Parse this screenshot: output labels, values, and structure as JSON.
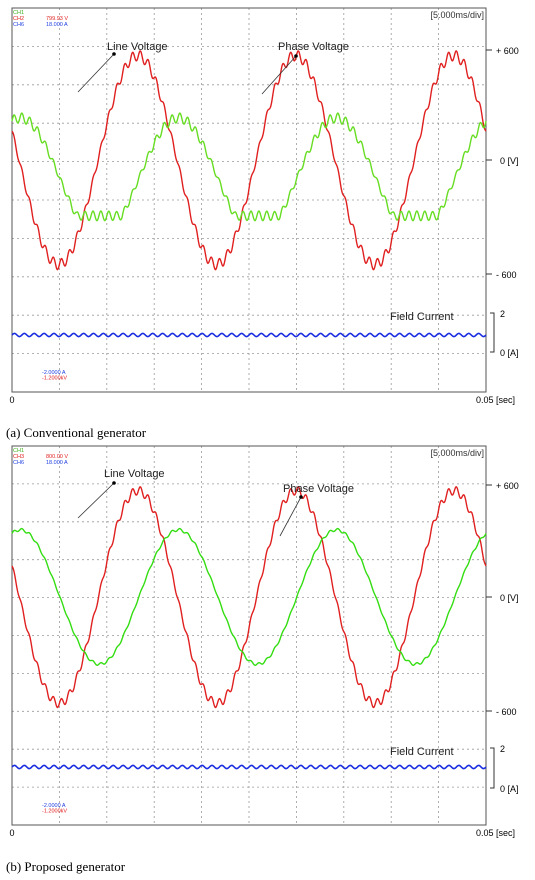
{
  "panels": [
    {
      "caption": "(a)  Conventional  generator",
      "header_label": "[5.000ms/div]",
      "channels": [
        {
          "name": "CH1",
          "value": "",
          "color": "#3fae1f"
        },
        {
          "name": "CH2",
          "value": "799.93 V",
          "color": "#e02020"
        },
        {
          "name": "CH6",
          "value": "18.000 A",
          "color": "#2040e0"
        }
      ],
      "offsets": [
        {
          "text": "-2.0000 A",
          "color": "#2040e0"
        },
        {
          "text": "-1.2000kV",
          "color": "#e02020"
        },
        {
          "text": "",
          "color": "#3fae1f"
        }
      ],
      "annotations": {
        "line_voltage": "Line Voltage",
        "phase_voltage": "Phase Voltage",
        "field_current": "Field Current"
      },
      "y_labels": {
        "top": "+ 600",
        "zero": "0 [V]",
        "bottom": "- 600",
        "current_top": "2",
        "current_zero": "0 [A]"
      },
      "x_labels": {
        "start": "0",
        "end": "0.05 [sec]"
      },
      "chart_data": {
        "type": "line",
        "xlabel": "[sec]",
        "xlim": [
          0,
          0.05
        ],
        "ylim": [
          -600,
          600
        ],
        "series": [
          {
            "name": "Line Voltage",
            "color": "#e02020",
            "frequency_hz": 60,
            "amplitude": 570,
            "phase_deg": 164,
            "ripple": 0.05
          },
          {
            "name": "Phase Voltage",
            "color": "#66dd22",
            "frequency_hz": 60,
            "amplitude": 330,
            "phase_deg": 71,
            "offset": -100,
            "ripple": 0.08,
            "flattened": true
          },
          {
            "name": "Field Current",
            "color": "#1a2ee0",
            "level_A": 1.0,
            "ripple_A": 0.08
          }
        ]
      }
    },
    {
      "caption": "(b)  Proposed  generator",
      "header_label": "[5.000ms/div]",
      "channels": [
        {
          "name": "CH1",
          "value": "",
          "color": "#3fae1f"
        },
        {
          "name": "CH3",
          "value": "800.00 V",
          "color": "#e02020"
        },
        {
          "name": "CH6",
          "value": "18.000 A",
          "color": "#2040e0"
        }
      ],
      "offsets": [
        {
          "text": "-2.0000 A",
          "color": "#2040e0"
        },
        {
          "text": "-1.2000kV",
          "color": "#e02020"
        },
        {
          "text": "",
          "color": "#3fae1f"
        }
      ],
      "annotations": {
        "line_voltage": "Line Voltage",
        "phase_voltage": "Phase Voltage",
        "field_current": "Field Current"
      },
      "y_labels": {
        "top": "+ 600",
        "zero": "0 [V]",
        "bottom": "- 600",
        "current_top": "2",
        "current_zero": "0 [A]"
      },
      "x_labels": {
        "start": "0",
        "end": "0.05 [sec]"
      },
      "chart_data": {
        "type": "line",
        "xlabel": "[sec]",
        "xlim": [
          0,
          0.05
        ],
        "ylim": [
          -600,
          600
        ],
        "series": [
          {
            "name": "Line Voltage",
            "color": "#e02020",
            "frequency_hz": 60,
            "amplitude": 570,
            "phase_deg": 163,
            "ripple": 0.04
          },
          {
            "name": "Phase Voltage",
            "color": "#33dd11",
            "frequency_hz": 60,
            "amplitude": 360,
            "phase_deg": 71,
            "ripple": 0.02
          },
          {
            "name": "Field Current",
            "color": "#1a2ee0",
            "level_A": 1.0,
            "ripple_A": 0.08
          }
        ]
      }
    }
  ]
}
